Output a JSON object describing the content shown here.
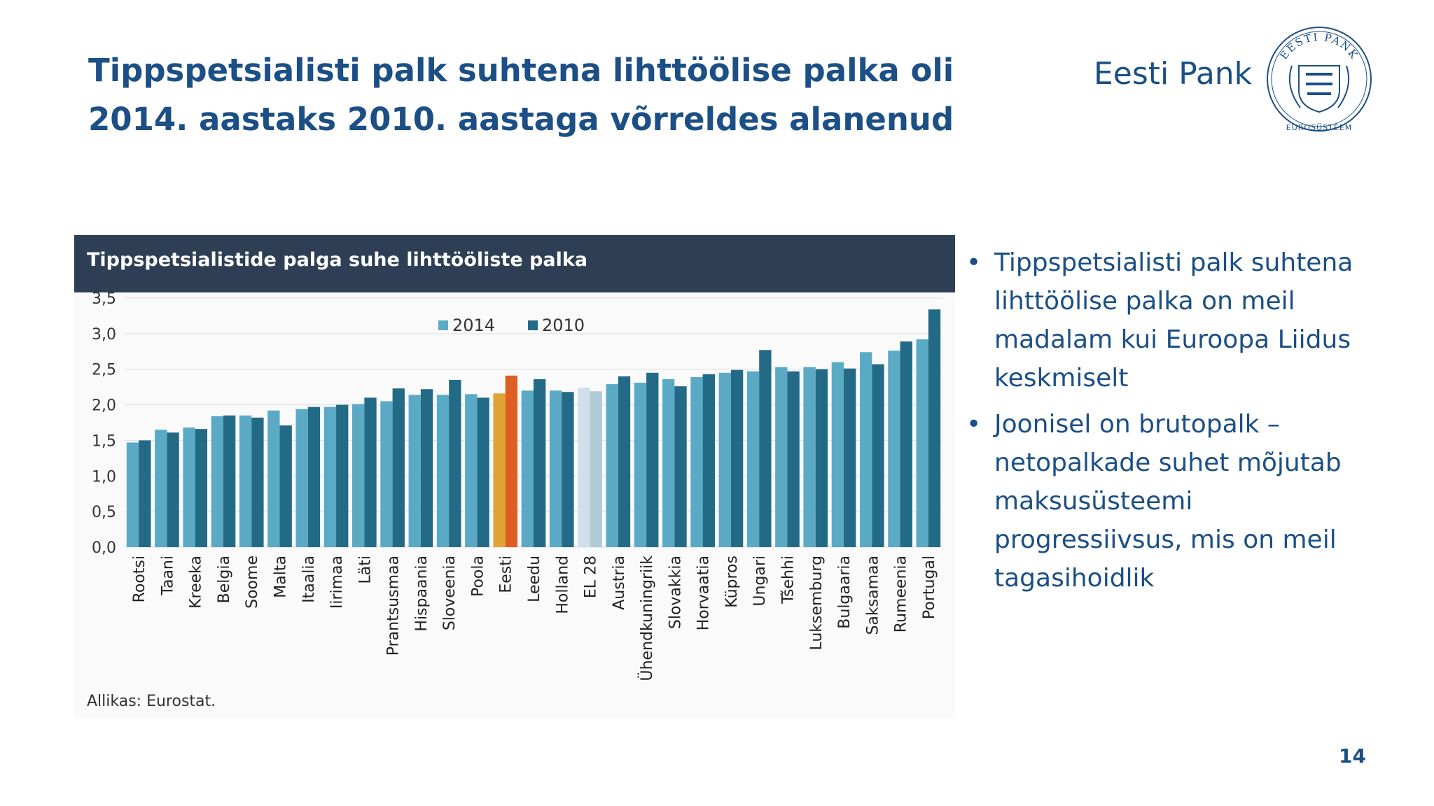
{
  "slide": {
    "title_line1": "Tippspetsialisti palk suhtena lihttöölise palka oli",
    "title_line2": "2014. aastaks 2010. aastaga võrreldes alanenud",
    "brand": "Eesti Pank",
    "seal_top_text": "EESTI PANK",
    "seal_bottom_text": "EUROSÜSTEEM",
    "page_number": "14"
  },
  "bullets": [
    "Tippspetsialisti palk suhtena lihttöölise palka on meil madalam kui Euroopa Liidus keskmiselt",
    "Joonisel on brutopalk – netopalkade suhet mõjutab maksusüsteemi progressiivsus, mis on meil tagasihoidlik"
  ],
  "colors": {
    "series_2014": "#5aaac6",
    "series_2010": "#236a86",
    "estonia_2014": "#e2a335",
    "estonia_2010": "#dd5f22",
    "eu_2014": "#cfe0ea",
    "eu_2010": "#afcbd9",
    "header_bg": "#2e3f55",
    "title_text": "#1b4f86"
  },
  "chart_data": {
    "type": "bar",
    "title": "Tippspetsialistide palga suhe lihttööliste palka",
    "source": "Allikas: Eurostat.",
    "categories": [
      "Rootsi",
      "Taani",
      "Kreeka",
      "Belgia",
      "Soome",
      "Malta",
      "Itaalia",
      "Iirimaa",
      "Läti",
      "Prantsusmaa",
      "Hispaania",
      "Sloveenia",
      "Poola",
      "Eesti",
      "Leedu",
      "Holland",
      "EL 28",
      "Austria",
      "Ühendkuningriik",
      "Slovakkia",
      "Horvaatia",
      "Küpros",
      "Ungari",
      "Tšehhi",
      "Luksemburg",
      "Bulgaaria",
      "Saksamaa",
      "Rumeenia",
      "Portugal"
    ],
    "series": [
      {
        "name": "2014",
        "values": [
          1.47,
          1.65,
          1.68,
          1.84,
          1.85,
          1.92,
          1.94,
          1.97,
          2.01,
          2.05,
          2.14,
          2.14,
          2.15,
          2.16,
          2.2,
          2.2,
          2.24,
          2.29,
          2.31,
          2.36,
          2.39,
          2.45,
          2.47,
          2.53,
          2.53,
          2.6,
          2.74,
          2.76,
          2.92
        ]
      },
      {
        "name": "2010",
        "values": [
          1.5,
          1.61,
          1.66,
          1.85,
          1.82,
          1.71,
          1.97,
          2.0,
          2.1,
          2.23,
          2.22,
          2.35,
          2.1,
          2.41,
          2.36,
          2.18,
          2.19,
          2.4,
          2.45,
          2.26,
          2.43,
          2.49,
          2.77,
          2.47,
          2.5,
          2.51,
          2.57,
          2.89,
          3.34
        ]
      }
    ],
    "highlight": {
      "Eesti": "estonia",
      "EL 28": "eu"
    },
    "y_ticks": [
      "0,0",
      "0,5",
      "1,0",
      "1,5",
      "2,0",
      "2,5",
      "3,0",
      "3,5"
    ],
    "ylim": [
      0,
      3.5
    ],
    "grid": true,
    "legend_position": "top-center"
  }
}
